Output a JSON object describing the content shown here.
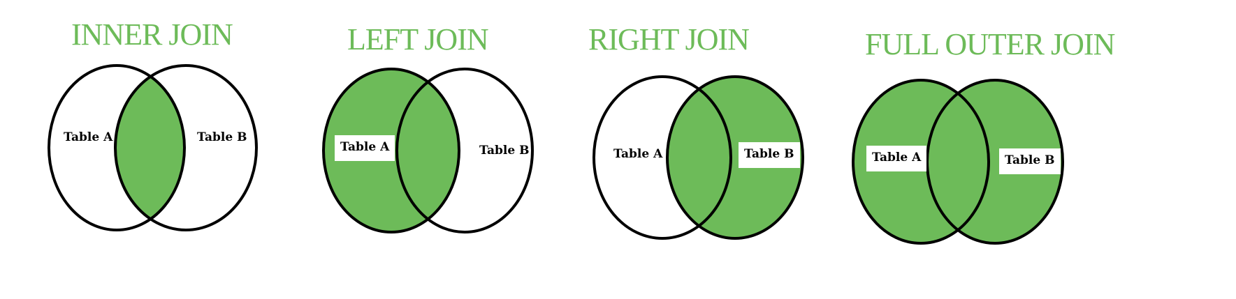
{
  "diagrams": [
    {
      "title": "INNER JOIN",
      "left_label": "Table A",
      "right_label": "Table B",
      "fill": "intersection"
    },
    {
      "title": "LEFT JOIN",
      "left_label": "Table A",
      "right_label": "Table B",
      "fill": "left"
    },
    {
      "title": "RIGHT JOIN",
      "left_label": "Table A",
      "right_label": "Table B",
      "fill": "right"
    },
    {
      "title": "FULL OUTER JOIN",
      "left_label": "Table A",
      "right_label": "Table B",
      "fill": "both"
    }
  ],
  "colors": {
    "fill": "#6dbb59",
    "title": "#6dbb59",
    "stroke": "#000000"
  }
}
